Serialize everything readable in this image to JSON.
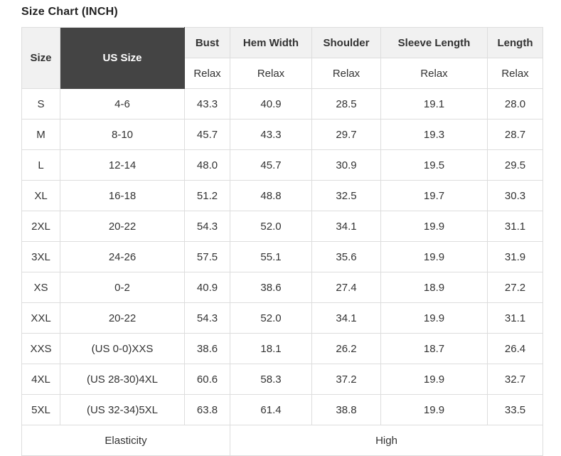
{
  "title": "Size Chart (INCH)",
  "colors": {
    "header_bg": "#f1f1f1",
    "us_size_header_bg": "#444444",
    "us_size_header_text": "#ffffff",
    "border": "#dddddd",
    "text": "#333333",
    "cell_bg": "#ffffff"
  },
  "table": {
    "header": {
      "size_label": "Size",
      "us_size_label": "US Size",
      "measure_columns": [
        "Bust",
        "Hem Width",
        "Shoulder",
        "Sleeve Length",
        "Length"
      ],
      "fit_row": [
        "Relax",
        "Relax",
        "Relax",
        "Relax",
        "Relax"
      ]
    },
    "rows": [
      {
        "size": "S",
        "us_size": "4-6",
        "values": [
          "43.3",
          "40.9",
          "28.5",
          "19.1",
          "28.0"
        ]
      },
      {
        "size": "M",
        "us_size": "8-10",
        "values": [
          "45.7",
          "43.3",
          "29.7",
          "19.3",
          "28.7"
        ]
      },
      {
        "size": "L",
        "us_size": "12-14",
        "values": [
          "48.0",
          "45.7",
          "30.9",
          "19.5",
          "29.5"
        ]
      },
      {
        "size": "XL",
        "us_size": "16-18",
        "values": [
          "51.2",
          "48.8",
          "32.5",
          "19.7",
          "30.3"
        ]
      },
      {
        "size": "2XL",
        "us_size": "20-22",
        "values": [
          "54.3",
          "52.0",
          "34.1",
          "19.9",
          "31.1"
        ]
      },
      {
        "size": "3XL",
        "us_size": "24-26",
        "values": [
          "57.5",
          "55.1",
          "35.6",
          "19.9",
          "31.9"
        ]
      },
      {
        "size": "XS",
        "us_size": "0-2",
        "values": [
          "40.9",
          "38.6",
          "27.4",
          "18.9",
          "27.2"
        ]
      },
      {
        "size": "XXL",
        "us_size": "20-22",
        "values": [
          "54.3",
          "52.0",
          "34.1",
          "19.9",
          "31.1"
        ]
      },
      {
        "size": "XXS",
        "us_size": "(US 0-0)XXS",
        "values": [
          "38.6",
          "18.1",
          "26.2",
          "18.7",
          "26.4"
        ]
      },
      {
        "size": "4XL",
        "us_size": "(US 28-30)4XL",
        "values": [
          "60.6",
          "58.3",
          "37.2",
          "19.9",
          "32.7"
        ]
      },
      {
        "size": "5XL",
        "us_size": "(US 32-34)5XL",
        "values": [
          "63.8",
          "61.4",
          "38.8",
          "19.9",
          "33.5"
        ]
      }
    ],
    "footer": {
      "elasticity_label": "Elasticity",
      "elasticity_value": "High"
    }
  },
  "chart_data": {
    "type": "table",
    "title": "Size Chart (INCH)",
    "columns": [
      "Size",
      "US Size",
      "Bust (Relax)",
      "Hem Width (Relax)",
      "Shoulder (Relax)",
      "Sleeve Length (Relax)",
      "Length (Relax)"
    ],
    "rows": [
      [
        "S",
        "4-6",
        43.3,
        40.9,
        28.5,
        19.1,
        28.0
      ],
      [
        "M",
        "8-10",
        45.7,
        43.3,
        29.7,
        19.3,
        28.7
      ],
      [
        "L",
        "12-14",
        48.0,
        45.7,
        30.9,
        19.5,
        29.5
      ],
      [
        "XL",
        "16-18",
        51.2,
        48.8,
        32.5,
        19.7,
        30.3
      ],
      [
        "2XL",
        "20-22",
        54.3,
        52.0,
        34.1,
        19.9,
        31.1
      ],
      [
        "3XL",
        "24-26",
        57.5,
        55.1,
        35.6,
        19.9,
        31.9
      ],
      [
        "XS",
        "0-2",
        40.9,
        38.6,
        27.4,
        18.9,
        27.2
      ],
      [
        "XXL",
        "20-22",
        54.3,
        52.0,
        34.1,
        19.9,
        31.1
      ],
      [
        "XXS",
        "(US 0-0)XXS",
        38.6,
        18.1,
        26.2,
        18.7,
        26.4
      ],
      [
        "4XL",
        "(US 28-30)4XL",
        60.6,
        58.3,
        37.2,
        19.9,
        32.7
      ],
      [
        "5XL",
        "(US 32-34)5XL",
        63.8,
        61.4,
        38.8,
        19.9,
        33.5
      ]
    ],
    "footer_row": [
      "Elasticity",
      "High"
    ]
  }
}
